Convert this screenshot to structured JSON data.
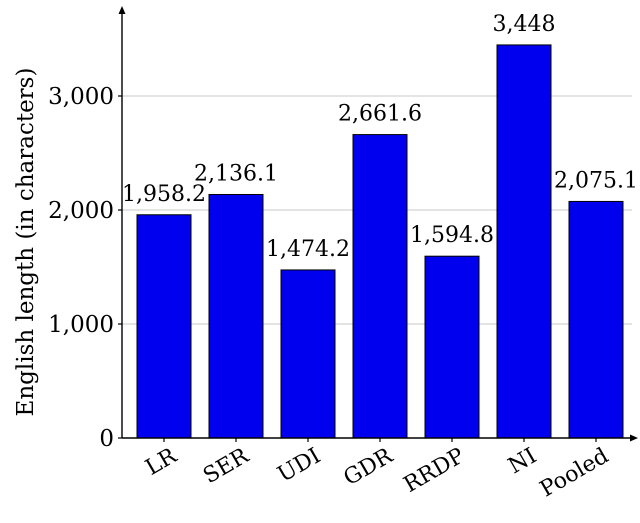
{
  "chart_data": {
    "type": "bar",
    "title": "",
    "xlabel": "",
    "ylabel": "English length (in characters)",
    "categories": [
      "LR",
      "SER",
      "UDI",
      "GDR",
      "RRDP",
      "NI",
      "Pooled"
    ],
    "values": [
      1958.2,
      2136.1,
      1474.2,
      2661.6,
      1594.8,
      3448,
      2075.1
    ],
    "value_labels": [
      "1,958.2",
      "2,136.1",
      "1,474.2",
      "2,661.6",
      "1,594.8",
      "3,448",
      "2,075.1"
    ],
    "yticks": [
      0,
      1000,
      2000,
      3000
    ],
    "ytick_labels": [
      "0",
      "1,000",
      "2,000",
      "3,000"
    ],
    "ylim": [
      0,
      3700
    ],
    "grid": "horizontal",
    "bar_color": "#0000ee"
  }
}
